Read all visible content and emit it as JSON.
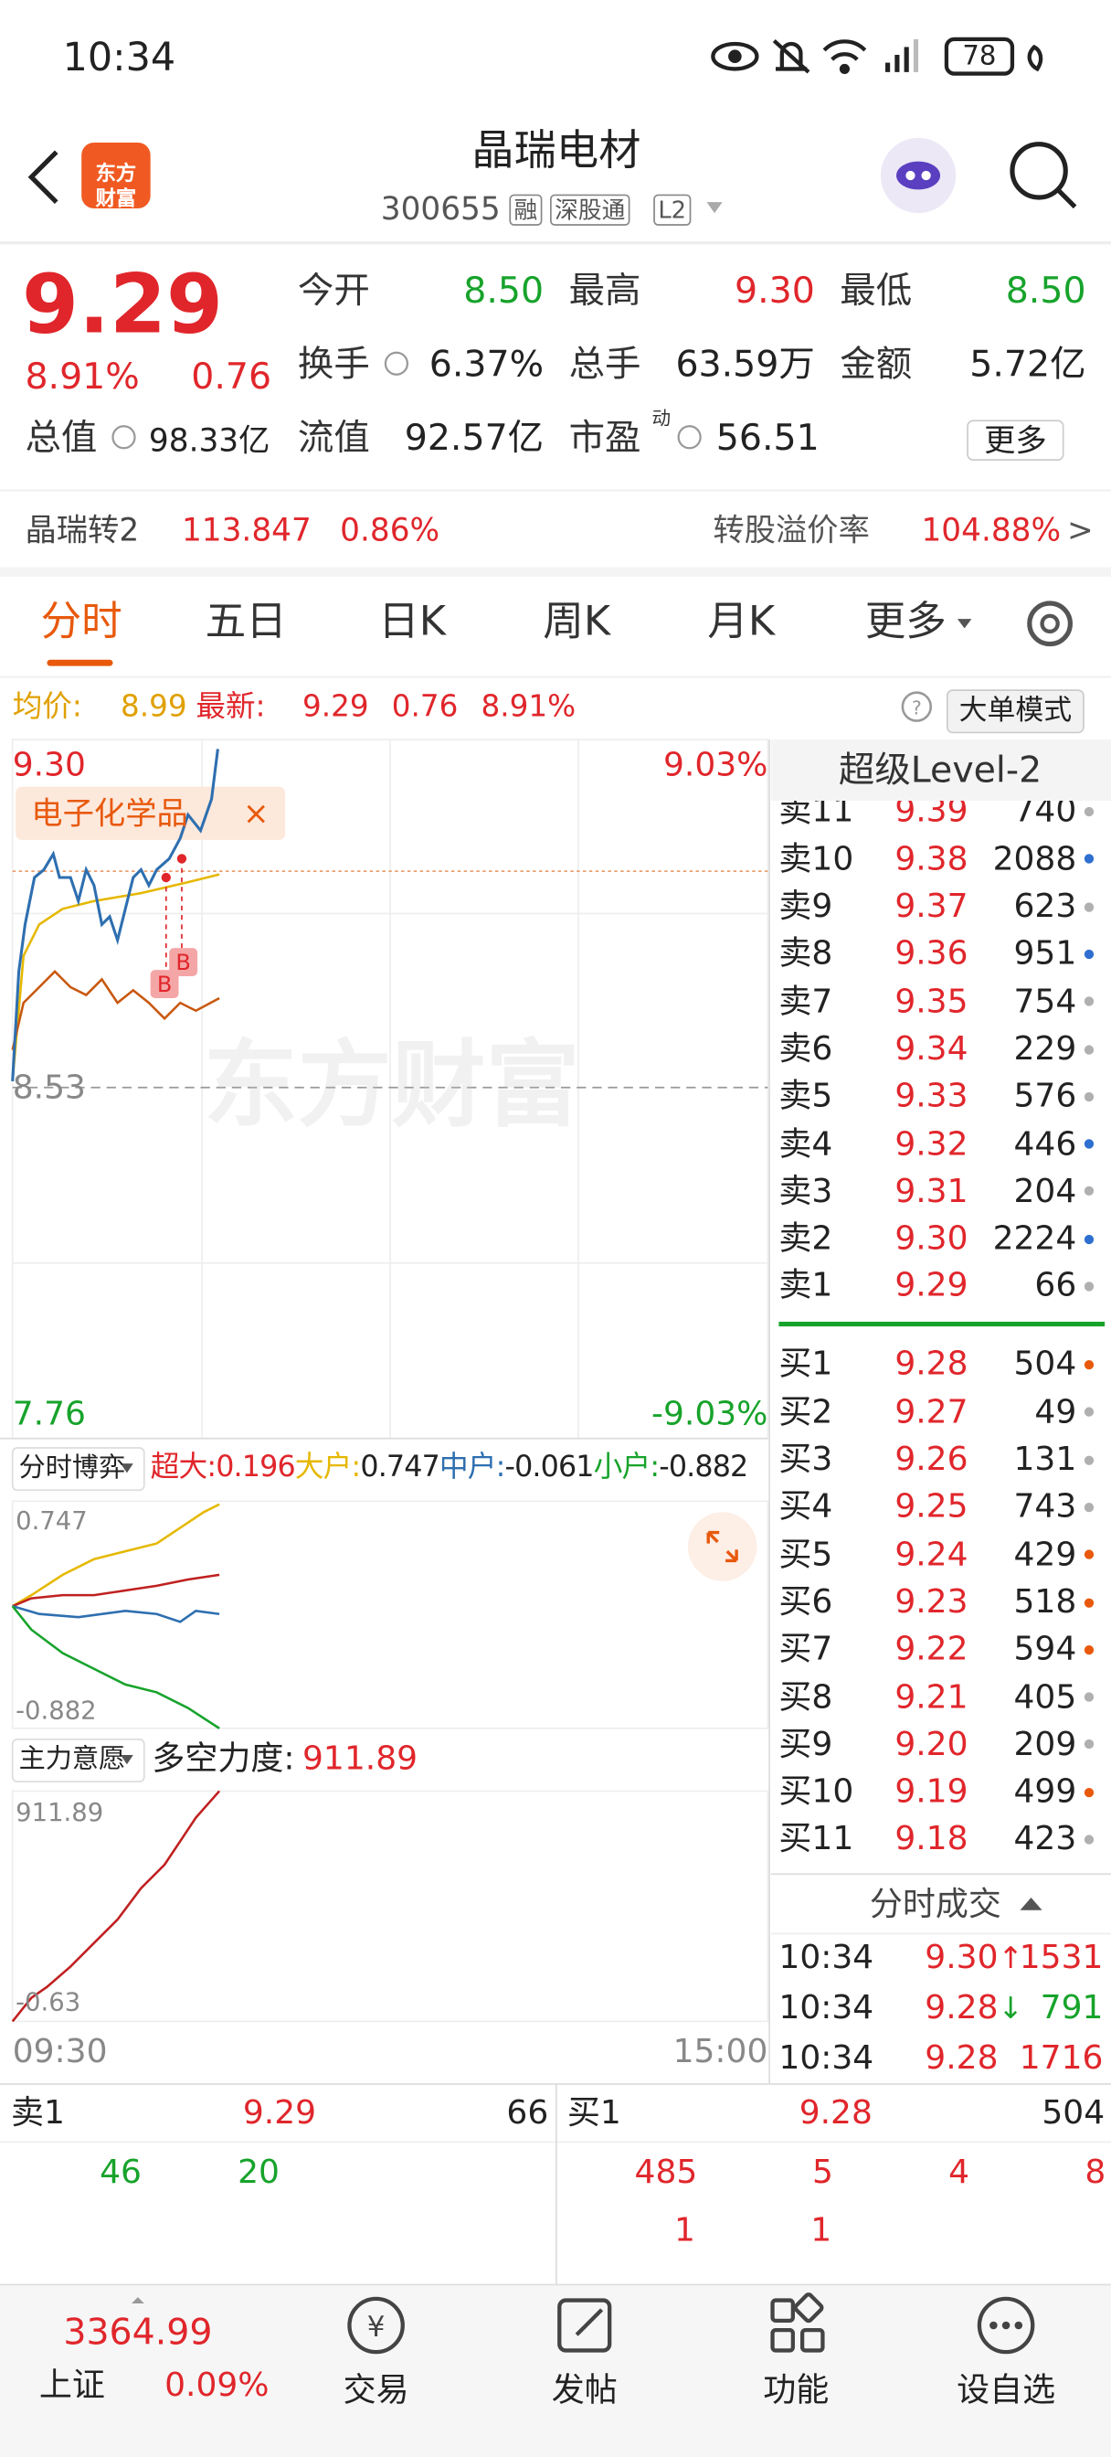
{
  "status_bar": {
    "time": "10:34",
    "battery": "78"
  },
  "header": {
    "logo": "东方财富",
    "title": "晶瑞电材",
    "code": "300655",
    "tags": [
      "融",
      "深股通",
      "L2"
    ]
  },
  "quote": {
    "price": "9.29",
    "change_percent": "8.91%",
    "change": "0.76",
    "fields": [
      {
        "label": "今开",
        "value": "8.50",
        "color": "#17a32b"
      },
      {
        "label": "最高",
        "value": "9.30",
        "color": "#e0262b"
      },
      {
        "label": "最低",
        "value": "8.50",
        "color": "#17a32b"
      },
      {
        "label": "换手",
        "value": "6.37%",
        "color": "#222222"
      },
      {
        "label": "总手",
        "value": "63.59万",
        "color": "#222222"
      },
      {
        "label": "金额",
        "value": "5.72亿",
        "color": "#222222"
      },
      {
        "label": "总值",
        "value": "98.33亿",
        "color": "#222222"
      },
      {
        "label": "流值",
        "value": "92.57亿",
        "color": "#222222"
      },
      {
        "label": "市盈",
        "superscript": "动",
        "value": "56.51",
        "color": "#222222"
      }
    ],
    "more_button": "更多"
  },
  "bond": {
    "name": "晶瑞转2",
    "price": "113.847",
    "change": "0.86%",
    "premium_label": "转股溢价率",
    "premium": "104.88%",
    "arrow": ">"
  },
  "tabs": [
    "分时",
    "五日",
    "日K",
    "周K",
    "月K",
    "更多"
  ],
  "info_bar": {
    "avg_label": "均价:",
    "avg": "8.99",
    "latest_label": "最新:",
    "latest": "9.29",
    "change": "0.76",
    "change_percent": "8.91%",
    "mode_button": "大单模式"
  },
  "main_chart": {
    "high": "9.30",
    "high_percent": "9.03%",
    "base": "8.53",
    "low": "7.76",
    "low_percent": "-9.03%",
    "sector_tag": "电子化学品",
    "watermark": "东方财富",
    "start_time": "09:30",
    "end_time": "15:00"
  },
  "flow_chart": {
    "selector": "分时博弈",
    "legend": [
      {
        "label": "超大:",
        "value": "0.196",
        "color": "#e0262b"
      },
      {
        "label": "大户:",
        "value": "0.747",
        "color": "#e6b800"
      },
      {
        "label": "中户:",
        "value": "-0.061",
        "color": "#2e6fb0"
      },
      {
        "label": "小户:",
        "value": "-0.882",
        "color": "#17a32b"
      }
    ],
    "max": "0.747",
    "min": "-0.882"
  },
  "power_chart": {
    "selector": "主力意愿",
    "label": "多空力度:",
    "value": "911.89",
    "max": "911.89",
    "min": "-0.63"
  },
  "order_book": {
    "title": "超级Level-2",
    "asks": [
      {
        "level": "卖11",
        "price": "9.39",
        "volume": "740",
        "dot": "#b0b0b0"
      },
      {
        "level": "卖10",
        "price": "9.38",
        "volume": "2088",
        "dot": "#2e6fd0"
      },
      {
        "level": "卖9",
        "price": "9.37",
        "volume": "623",
        "dot": "#b0b0b0"
      },
      {
        "level": "卖8",
        "price": "9.36",
        "volume": "951",
        "dot": "#2e6fd0"
      },
      {
        "level": "卖7",
        "price": "9.35",
        "volume": "754",
        "dot": "#b0b0b0"
      },
      {
        "level": "卖6",
        "price": "9.34",
        "volume": "229",
        "dot": "#b0b0b0"
      },
      {
        "level": "卖5",
        "price": "9.33",
        "volume": "576",
        "dot": "#b0b0b0"
      },
      {
        "level": "卖4",
        "price": "9.32",
        "volume": "446",
        "dot": "#2e6fd0"
      },
      {
        "level": "卖3",
        "price": "9.31",
        "volume": "204",
        "dot": "#b0b0b0"
      },
      {
        "level": "卖2",
        "price": "9.30",
        "volume": "2224",
        "dot": "#2e6fd0"
      },
      {
        "level": "卖1",
        "price": "9.29",
        "volume": "66",
        "dot": "#b0b0b0"
      }
    ],
    "bids": [
      {
        "level": "买1",
        "price": "9.28",
        "volume": "504",
        "dot": "#e8590c"
      },
      {
        "level": "买2",
        "price": "9.27",
        "volume": "49",
        "dot": "#b0b0b0"
      },
      {
        "level": "买3",
        "price": "9.26",
        "volume": "131",
        "dot": "#b0b0b0"
      },
      {
        "level": "买4",
        "price": "9.25",
        "volume": "743",
        "dot": "#b0b0b0"
      },
      {
        "level": "买5",
        "price": "9.24",
        "volume": "429",
        "dot": "#e8590c"
      },
      {
        "level": "买6",
        "price": "9.23",
        "volume": "518",
        "dot": "#e8590c"
      },
      {
        "level": "买7",
        "price": "9.22",
        "volume": "594",
        "dot": "#e8590c"
      },
      {
        "level": "买8",
        "price": "9.21",
        "volume": "405",
        "dot": "#b0b0b0"
      },
      {
        "level": "买9",
        "price": "9.20",
        "volume": "209",
        "dot": "#b0b0b0"
      },
      {
        "level": "买10",
        "price": "9.19",
        "volume": "499",
        "dot": "#e8590c"
      },
      {
        "level": "买11",
        "price": "9.18",
        "volume": "423",
        "dot": "#b0b0b0"
      }
    ]
  },
  "trades": {
    "title": "分时成交",
    "rows": [
      {
        "time": "10:34",
        "price": "9.30",
        "direction": "↑",
        "volume": "1531",
        "color": "#e0262b"
      },
      {
        "time": "10:34",
        "price": "9.28",
        "direction": "↓",
        "volume": "791",
        "color": "#17a32b"
      },
      {
        "time": "10:34",
        "price": "9.28",
        "volume": "1716",
        "color": "#e0262b"
      }
    ]
  },
  "queue": {
    "ask": {
      "label": "卖1",
      "price": "9.29",
      "volume": "66",
      "orders": [
        [
          "46",
          "20"
        ]
      ]
    },
    "bid": {
      "label": "买1",
      "price": "9.28",
      "volume": "504",
      "orders": [
        [
          "485",
          "5",
          "4",
          "8"
        ],
        [
          "1",
          "1"
        ]
      ]
    }
  },
  "nav": {
    "index_value": "3364.99",
    "index_name": "上证",
    "index_change": "0.09%",
    "items": [
      "交易",
      "发帖",
      "功能",
      "设自选"
    ]
  }
}
